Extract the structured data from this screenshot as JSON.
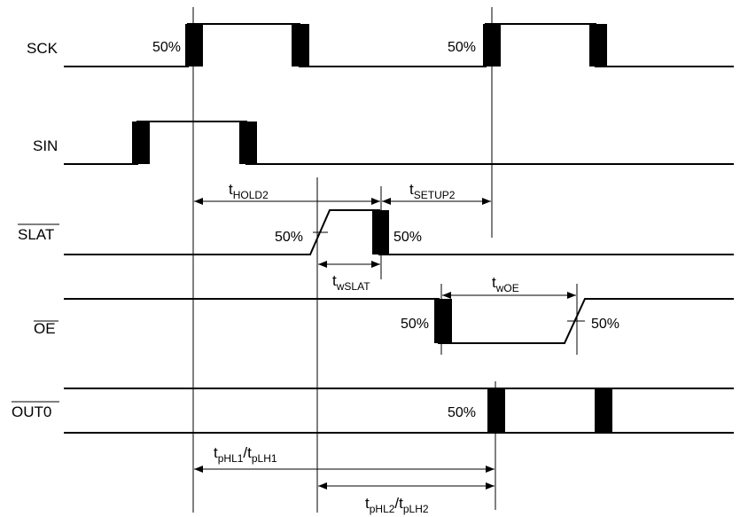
{
  "signals": {
    "sck": "SCK",
    "sin": "SIN",
    "slat": "SLAT",
    "oe": "OE",
    "out0": "OUT0"
  },
  "percent_label": "50%",
  "timing": {
    "hold2": {
      "t": "t",
      "sub": "HOLD2"
    },
    "setup2": {
      "t": "t",
      "sub": "SETUP2"
    },
    "wslat": {
      "t": "t",
      "sub": "wSLAT"
    },
    "woe": {
      "t": "t",
      "sub": "wOE"
    },
    "phl1": {
      "t1": "t",
      "sub1": "pHL1",
      "sep": "/t",
      "sub2": "pLH1"
    },
    "phl2": {
      "t1": "t",
      "sub1": "pHL2",
      "sep": "/t",
      "sub2": "pLH2"
    }
  },
  "colors": {
    "line": "#000000",
    "background": "#ffffff"
  }
}
